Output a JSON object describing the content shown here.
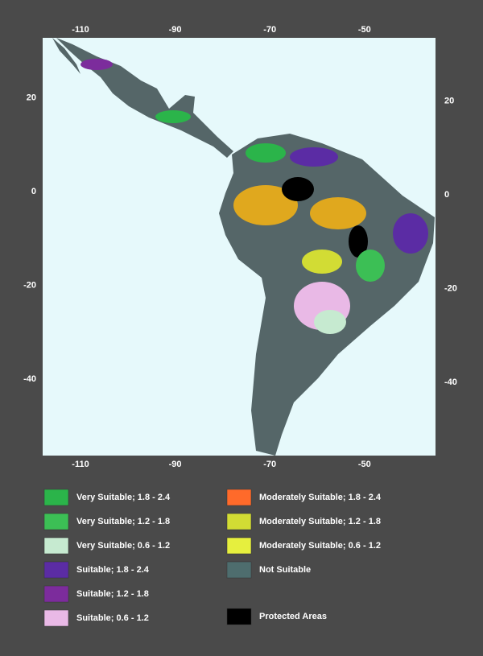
{
  "map": {
    "lon_ticks": [
      -110,
      -90,
      -70,
      -50
    ],
    "lat_ticks": [
      20,
      0,
      -20,
      -40
    ],
    "legend": [
      {
        "label": "Very Suitable; 1.8 - 2.4",
        "color": "#2bb44a"
      },
      {
        "label": "Very Suitable; 1.2 - 1.8",
        "color": "#3cbf55"
      },
      {
        "label": "Very Suitable; 0.6 - 1.2",
        "color": "#c6ead0"
      },
      {
        "label": "Suitable; 1.8 - 2.4",
        "color": "#5b2ca4"
      },
      {
        "label": "Suitable; 1.2 - 1.8",
        "color": "#7c2c9c"
      },
      {
        "label": "Suitable; 0.6 - 1.2",
        "color": "#e9b9e6"
      },
      {
        "label": "Moderately Suitable; 1.8 - 2.4",
        "color": "#ff6a2a"
      },
      {
        "label": "Moderately Suitable; 1.2 - 1.8",
        "color": "#d2dc34"
      },
      {
        "label": "Moderately Suitable; 0.6 - 1.2",
        "color": "#e6ef3e"
      },
      {
        "label": "Not Suitable",
        "color": "#4e6d6e"
      },
      {
        "label": "Protected Areas",
        "color": "#000000"
      }
    ]
  }
}
